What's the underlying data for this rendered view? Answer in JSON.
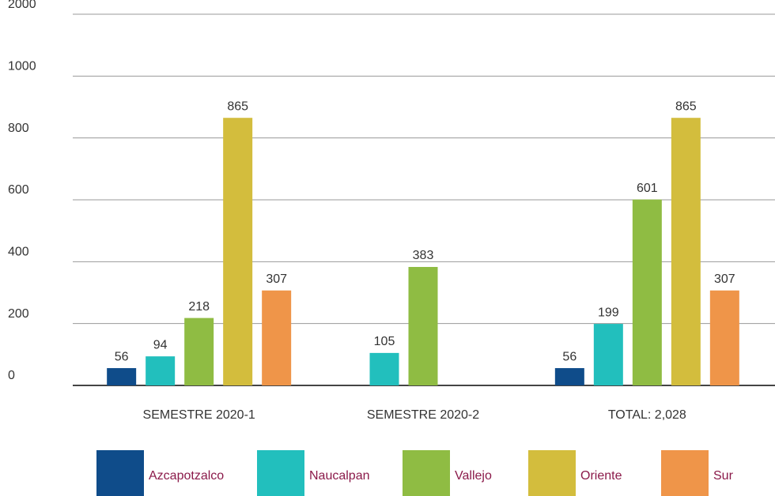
{
  "chart_data": {
    "type": "bar",
    "categories": [
      "SEMESTRE 2020-1",
      "SEMESTRE 2020-2",
      "TOTAL: 2,028"
    ],
    "series": [
      {
        "name": "Azcapotzalco",
        "color": "#0f4c8a",
        "values": [
          56,
          null,
          56
        ]
      },
      {
        "name": "Naucalpan",
        "color": "#22bfbd",
        "values": [
          94,
          105,
          199
        ]
      },
      {
        "name": "Vallejo",
        "color": "#8fbc43",
        "values": [
          218,
          383,
          601
        ]
      },
      {
        "name": "Oriente",
        "color": "#d3bd3d",
        "values": [
          865,
          null,
          865
        ]
      },
      {
        "name": "Sur",
        "color": "#ef9549",
        "values": [
          307,
          null,
          307
        ]
      }
    ],
    "ylim": [
      0,
      2000
    ],
    "yticks": [
      0,
      200,
      400,
      600,
      800,
      1000,
      2000
    ],
    "grid": true,
    "legend": "bottom"
  }
}
